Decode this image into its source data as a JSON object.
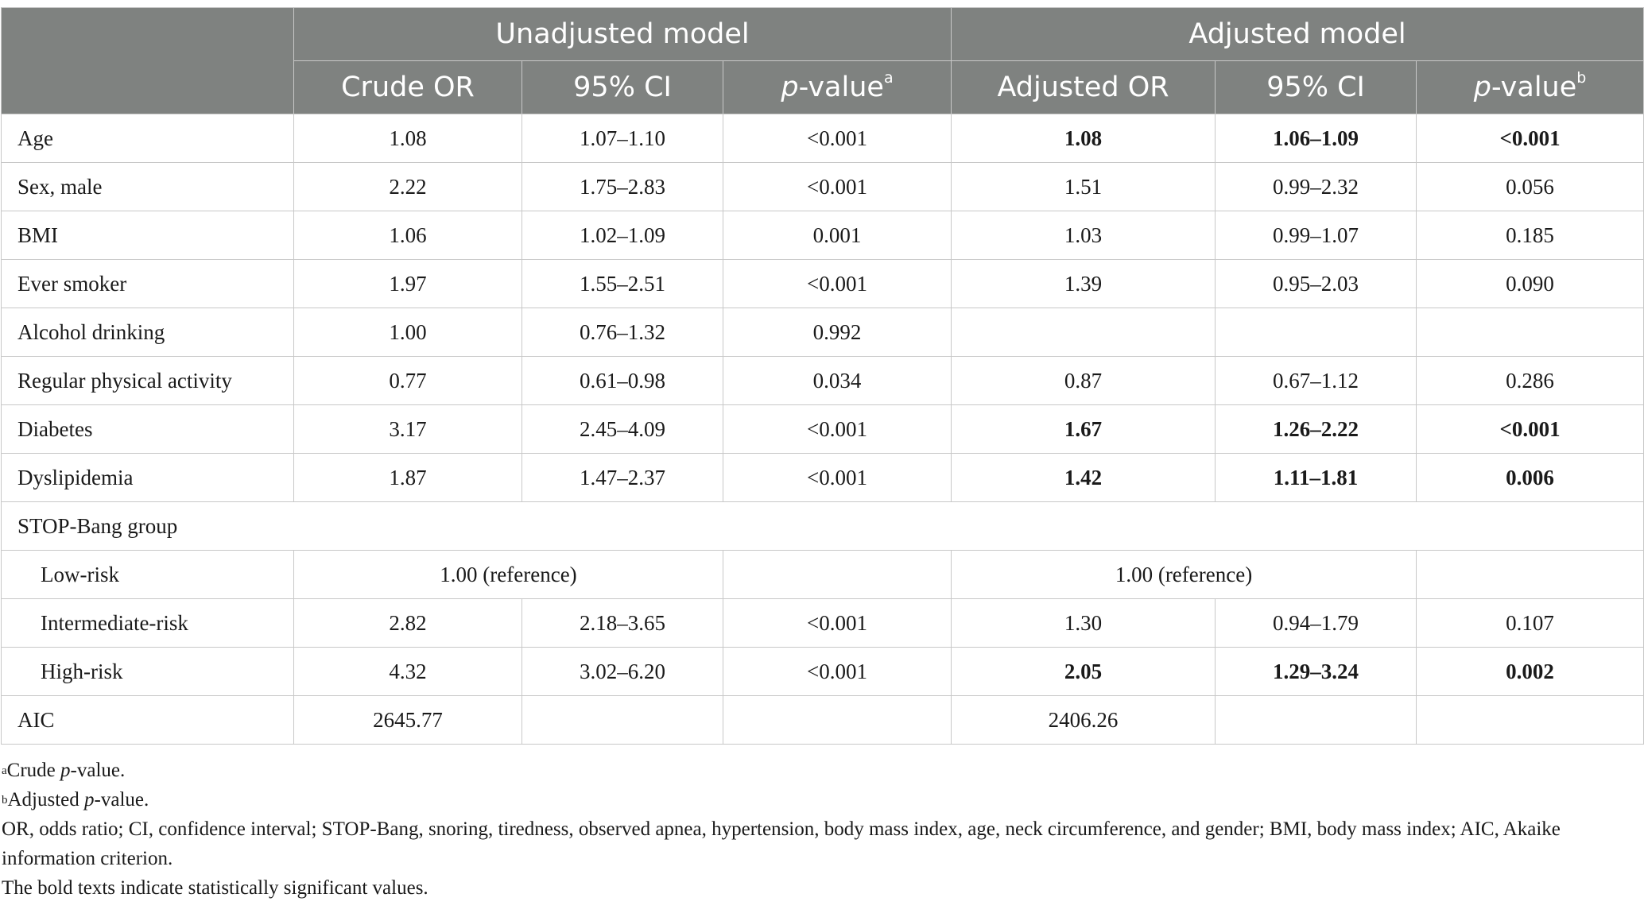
{
  "header": {
    "unadjusted": "Unadjusted model",
    "adjusted": "Adjusted model",
    "crude_or": "Crude OR",
    "ci": "95% CI",
    "p_italic": "p",
    "p_rest": "-value",
    "sup_a": "a",
    "adjusted_or": "Adjusted OR",
    "sup_b": "b"
  },
  "rows": {
    "age": {
      "label": "Age",
      "c1": "1.08",
      "c2": "1.07–1.10",
      "c3": "<0.001",
      "c4": "1.08",
      "c5": "1.06–1.09",
      "c6": "<0.001"
    },
    "sex": {
      "label": "Sex, male",
      "c1": "2.22",
      "c2": "1.75–2.83",
      "c3": "<0.001",
      "c4": "1.51",
      "c5": "0.99–2.32",
      "c6": "0.056"
    },
    "bmi": {
      "label": "BMI",
      "c1": "1.06",
      "c2": "1.02–1.09",
      "c3": "0.001",
      "c4": "1.03",
      "c5": "0.99–1.07",
      "c6": "0.185"
    },
    "smoker": {
      "label": "Ever smoker",
      "c1": "1.97",
      "c2": "1.55–2.51",
      "c3": "<0.001",
      "c4": "1.39",
      "c5": "0.95–2.03",
      "c6": "0.090"
    },
    "alcohol": {
      "label": "Alcohol drinking",
      "c1": "1.00",
      "c2": "0.76–1.32",
      "c3": "0.992"
    },
    "activity": {
      "label": "Regular physical activity",
      "c1": "0.77",
      "c2": "0.61–0.98",
      "c3": "0.034",
      "c4": "0.87",
      "c5": "0.67–1.12",
      "c6": "0.286"
    },
    "diabetes": {
      "label": "Diabetes",
      "c1": "3.17",
      "c2": "2.45–4.09",
      "c3": "<0.001",
      "c4": "1.67",
      "c5": "1.26–2.22",
      "c6": "<0.001"
    },
    "dyslipidemia": {
      "label": "Dyslipidemia",
      "c1": "1.87",
      "c2": "1.47–2.37",
      "c3": "<0.001",
      "c4": "1.42",
      "c5": "1.11–1.81",
      "c6": "0.006"
    },
    "stopbang": {
      "label": "STOP-Bang group"
    },
    "low": {
      "label": "Low-risk",
      "ref1": "1.00 (reference)",
      "ref2": "1.00 (reference)"
    },
    "intermediate": {
      "label": "Intermediate-risk",
      "c1": "2.82",
      "c2": "2.18–3.65",
      "c3": "<0.001",
      "c4": "1.30",
      "c5": "0.94–1.79",
      "c6": "0.107"
    },
    "high": {
      "label": "High-risk",
      "c1": "4.32",
      "c2": "3.02–6.20",
      "c3": "<0.001",
      "c4": "2.05",
      "c5": "1.29–3.24",
      "c6": "0.002"
    },
    "aic": {
      "label": "AIC",
      "c1": "2645.77",
      "c4": "2406.26"
    }
  },
  "notes": {
    "a_sup": "a",
    "a_pre": "Crude ",
    "a_it": "p",
    "a_post": "-value.",
    "b_sup": "b",
    "b_pre": "Adjusted ",
    "b_it": "p",
    "b_post": "-value.",
    "abbrev": "OR, odds ratio; CI, confidence interval; STOP-Bang, snoring, tiredness, observed apnea, hypertension, body mass index, age, neck circumference, and gender; BMI, body mass index; AIC, Akaike information criterion.",
    "bold_note": "The bold texts indicate statistically significant values."
  }
}
